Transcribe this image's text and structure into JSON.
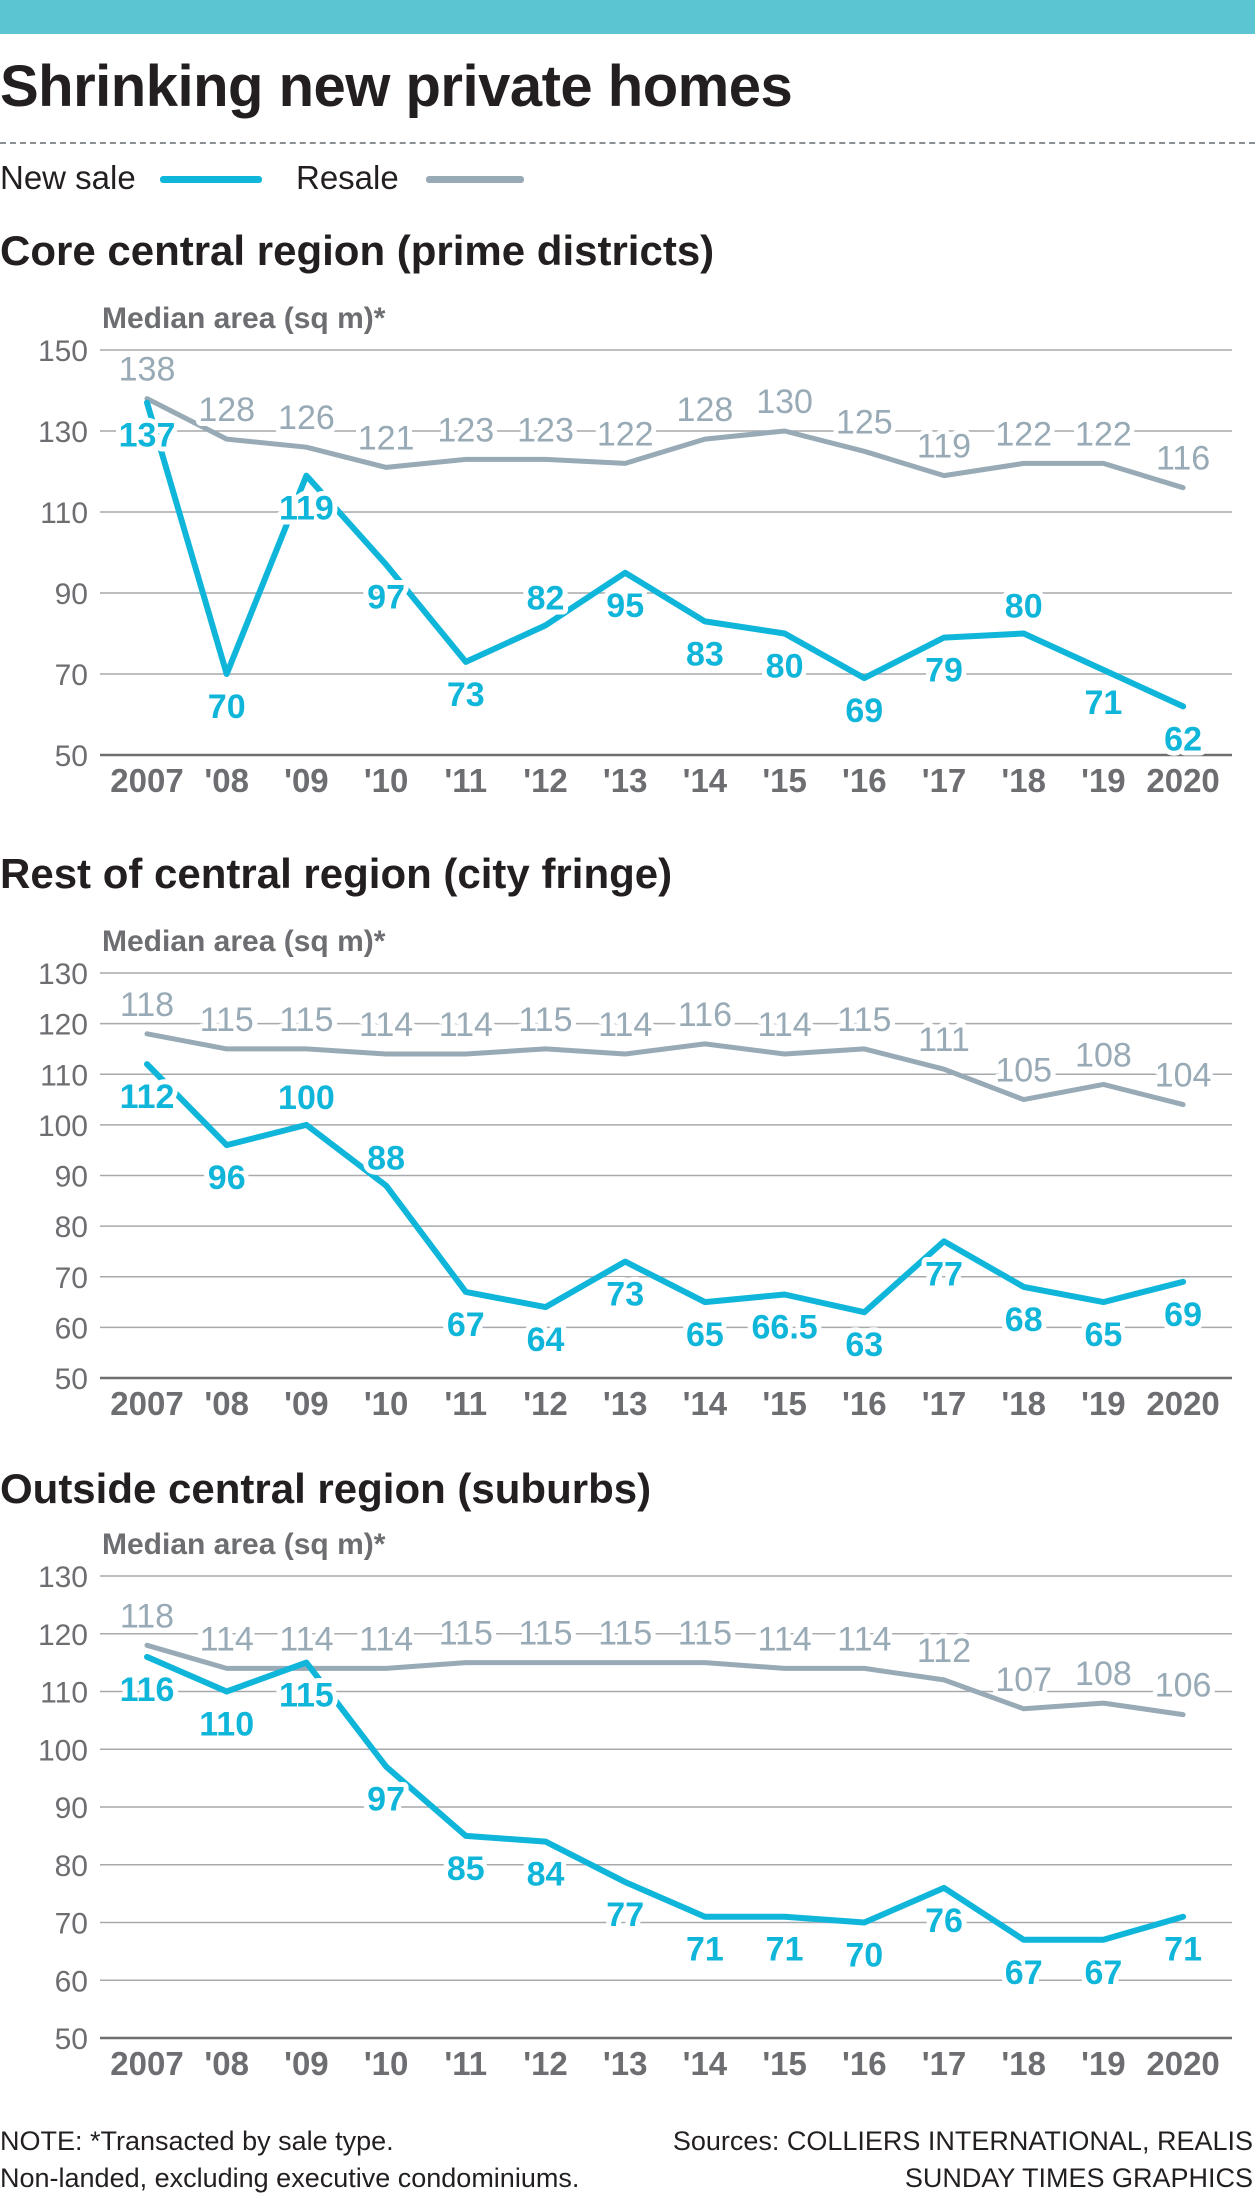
{
  "title": "Shrinking new private homes",
  "legend": {
    "new_sale": "New sale",
    "resale": "Resale"
  },
  "colors": {
    "new_sale": "#10b6da",
    "resale": "#98aab5",
    "top_bar": "#5bc5d2",
    "grid": "#9a9a9a",
    "axis_text": "#6d6e71"
  },
  "chart_data": [
    {
      "type": "line",
      "title": "Core central region (prime districts)",
      "ylabel": "Median area (sq m)*",
      "ylim": [
        50,
        150
      ],
      "yticks": [
        50,
        70,
        90,
        110,
        130,
        150
      ],
      "categories": [
        "2007",
        "'08",
        "'09",
        "'10",
        "'11",
        "'12",
        "'13",
        "'14",
        "'15",
        "'16",
        "'17",
        "'18",
        "'19",
        "2020"
      ],
      "series": [
        {
          "name": "New sale",
          "values": [
            137,
            70,
            119,
            97,
            73,
            82,
            95,
            83,
            80,
            69,
            79,
            80,
            71,
            62
          ],
          "labels": [
            "137",
            "70",
            "119",
            "97",
            "73",
            "82",
            "95",
            "83",
            "80",
            "69",
            "79",
            "80",
            "71",
            "62"
          ]
        },
        {
          "name": "Resale",
          "values": [
            138,
            128,
            126,
            121,
            123,
            123,
            122,
            128,
            130,
            125,
            119,
            122,
            122,
            116
          ],
          "labels": [
            "138",
            "128",
            "126",
            "121",
            "123",
            "123",
            "122",
            "128",
            "130",
            "125",
            "119",
            "122",
            "122",
            "116"
          ]
        }
      ]
    },
    {
      "type": "line",
      "title": "Rest of central region (city fringe)",
      "ylabel": "Median area (sq m)*",
      "ylim": [
        50,
        130
      ],
      "yticks": [
        50,
        60,
        70,
        80,
        90,
        100,
        110,
        120,
        130
      ],
      "categories": [
        "2007",
        "'08",
        "'09",
        "'10",
        "'11",
        "'12",
        "'13",
        "'14",
        "'15",
        "'16",
        "'17",
        "'18",
        "'19",
        "2020"
      ],
      "series": [
        {
          "name": "New sale",
          "values": [
            112,
            96,
            100,
            88,
            67,
            64,
            73,
            65,
            66.5,
            63,
            77,
            68,
            65,
            69
          ],
          "labels": [
            "112",
            "96",
            "100",
            "88",
            "67",
            "64",
            "73",
            "65",
            "66.5",
            "63",
            "77",
            "68",
            "65",
            "69"
          ]
        },
        {
          "name": "Resale",
          "values": [
            118,
            115,
            115,
            114,
            114,
            115,
            114,
            116,
            114,
            115,
            111,
            105,
            108,
            104
          ],
          "labels": [
            "118",
            "115",
            "115",
            "114",
            "114",
            "115",
            "114",
            "116",
            "114",
            "115",
            "111",
            "105",
            "108",
            "104"
          ]
        }
      ]
    },
    {
      "type": "line",
      "title": "Outside central region (suburbs)",
      "ylabel": "Median area (sq m)*",
      "ylim": [
        50,
        130
      ],
      "yticks": [
        50,
        60,
        70,
        80,
        90,
        100,
        110,
        120,
        130
      ],
      "categories": [
        "2007",
        "'08",
        "'09",
        "'10",
        "'11",
        "'12",
        "'13",
        "'14",
        "'15",
        "'16",
        "'17",
        "'18",
        "'19",
        "2020"
      ],
      "series": [
        {
          "name": "New sale",
          "values": [
            116,
            110,
            115,
            97,
            85,
            84,
            77,
            71,
            71,
            70,
            76,
            67,
            67,
            71
          ],
          "labels": [
            "116",
            "110",
            "115",
            "97",
            "85",
            "84",
            "77",
            "71",
            "71",
            "70",
            "76",
            "67",
            "67",
            "71"
          ]
        },
        {
          "name": "Resale",
          "values": [
            118,
            114,
            114,
            114,
            115,
            115,
            115,
            115,
            114,
            114,
            112,
            107,
            108,
            106
          ],
          "labels": [
            "118",
            "114",
            "114",
            "114",
            "115",
            "115",
            "115",
            "115",
            "114",
            "114",
            "112",
            "107",
            "108",
            "106"
          ]
        }
      ]
    }
  ],
  "footer": {
    "note_line1": "NOTE: *Transacted by sale type.",
    "note_line2": "Non-landed, excluding executive condominiums.",
    "sources": "Sources: COLLIERS INTERNATIONAL, REALIS",
    "credit": "SUNDAY TIMES GRAPHICS"
  }
}
